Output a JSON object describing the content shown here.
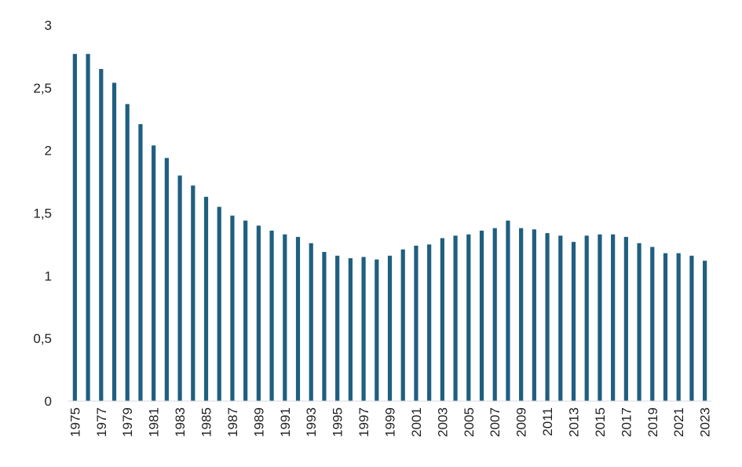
{
  "chart_data": {
    "type": "bar",
    "categories": [
      "1975",
      "1976",
      "1977",
      "1978",
      "1979",
      "1980",
      "1981",
      "1982",
      "1983",
      "1984",
      "1985",
      "1986",
      "1987",
      "1988",
      "1989",
      "1990",
      "1991",
      "1992",
      "1993",
      "1994",
      "1995",
      "1996",
      "1997",
      "1998",
      "1999",
      "2000",
      "2001",
      "2002",
      "2003",
      "2004",
      "2005",
      "2006",
      "2007",
      "2008",
      "2009",
      "2010",
      "2011",
      "2012",
      "2013",
      "2014",
      "2015",
      "2016",
      "2017",
      "2018",
      "2019",
      "2020",
      "2021",
      "2022",
      "2023"
    ],
    "values": [
      2.77,
      2.77,
      2.65,
      2.54,
      2.37,
      2.21,
      2.04,
      1.94,
      1.8,
      1.72,
      1.63,
      1.55,
      1.48,
      1.44,
      1.4,
      1.36,
      1.33,
      1.31,
      1.26,
      1.19,
      1.16,
      1.14,
      1.15,
      1.13,
      1.16,
      1.21,
      1.24,
      1.25,
      1.3,
      1.32,
      1.33,
      1.36,
      1.38,
      1.44,
      1.38,
      1.37,
      1.34,
      1.32,
      1.27,
      1.32,
      1.33,
      1.33,
      1.31,
      1.26,
      1.23,
      1.18,
      1.18,
      1.16,
      1.12
    ],
    "x_tick_labels": [
      "1975",
      "1977",
      "1979",
      "1981",
      "1983",
      "1985",
      "1987",
      "1989",
      "1991",
      "1993",
      "1995",
      "1997",
      "1999",
      "2001",
      "2003",
      "2005",
      "2007",
      "2009",
      "2011",
      "2013",
      "2015",
      "2017",
      "2019",
      "2021",
      "2023"
    ],
    "y_tick_labels": [
      "0",
      "0,5",
      "1",
      "1,5",
      "2",
      "2,5",
      "3"
    ],
    "y_ticks": [
      0,
      0.5,
      1,
      1.5,
      2,
      2.5,
      3
    ],
    "ylim": [
      0,
      3
    ],
    "title": "",
    "xlabel": "",
    "ylabel": "",
    "grid": false,
    "legend": "none",
    "bar_color": "#1f5f7f"
  }
}
